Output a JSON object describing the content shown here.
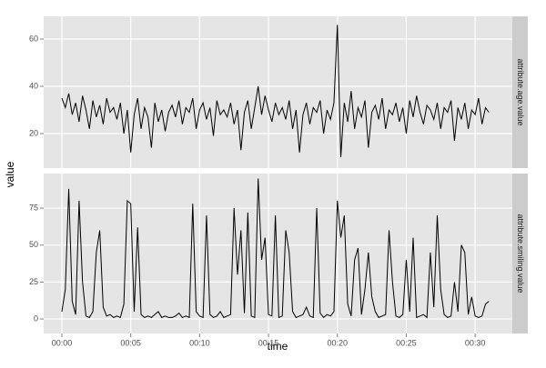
{
  "chart_data": {
    "type": "line",
    "x_label": "time",
    "y_label": "value",
    "grid": true,
    "xlim": [
      -1.32,
      32.7
    ],
    "xticks": [
      {
        "value": 0,
        "label": "00:00"
      },
      {
        "value": 5,
        "label": "00:05"
      },
      {
        "value": 10,
        "label": "00:10"
      },
      {
        "value": 15,
        "label": "00:15"
      },
      {
        "value": 20,
        "label": "00:20"
      },
      {
        "value": 25,
        "label": "00:25"
      },
      {
        "value": 30,
        "label": "00:30"
      }
    ],
    "x": [
      0,
      0.25,
      0.5,
      0.75,
      1,
      1.25,
      1.5,
      1.75,
      2,
      2.25,
      2.5,
      2.75,
      3,
      3.25,
      3.5,
      3.75,
      4,
      4.25,
      4.5,
      4.75,
      5,
      5.25,
      5.5,
      5.75,
      6,
      6.25,
      6.5,
      6.75,
      7,
      7.25,
      7.5,
      7.75,
      8,
      8.25,
      8.5,
      8.75,
      9,
      9.25,
      9.5,
      9.75,
      10,
      10.25,
      10.5,
      10.75,
      11,
      11.25,
      11.5,
      11.75,
      12,
      12.25,
      12.5,
      12.75,
      13,
      13.25,
      13.5,
      13.75,
      14,
      14.25,
      14.5,
      14.75,
      15,
      15.25,
      15.5,
      15.75,
      16,
      16.25,
      16.5,
      16.75,
      17,
      17.25,
      17.5,
      17.75,
      18,
      18.25,
      18.5,
      18.75,
      19,
      19.25,
      19.5,
      19.75,
      20,
      20.25,
      20.5,
      20.75,
      21,
      21.25,
      21.5,
      21.75,
      22,
      22.25,
      22.5,
      22.75,
      23,
      23.25,
      23.5,
      23.75,
      24,
      24.25,
      24.5,
      24.75,
      25,
      25.25,
      25.5,
      25.75,
      26,
      26.25,
      26.5,
      26.75,
      27,
      27.25,
      27.5,
      27.75,
      28,
      28.25,
      28.5,
      28.75,
      29,
      29.25,
      29.5,
      29.75,
      30,
      30.25,
      30.5,
      30.75,
      31
    ],
    "panels": [
      {
        "label": "attribute.age.value",
        "color": "#000000",
        "ylim": [
          5.4,
          69.6
        ],
        "yticks": [
          20,
          40,
          60
        ],
        "values": [
          35,
          31,
          37,
          28,
          33,
          25,
          36,
          30,
          22,
          34,
          27,
          32,
          24,
          35,
          29,
          31,
          26,
          33,
          20,
          30,
          12,
          28,
          35,
          22,
          31,
          27,
          14,
          33,
          25,
          30,
          21,
          29,
          32,
          27,
          34,
          24,
          31,
          29,
          35,
          22,
          30,
          33,
          26,
          31,
          19,
          34,
          28,
          30,
          27,
          33,
          24,
          30,
          13,
          29,
          34,
          22,
          31,
          40,
          28,
          36,
          30,
          25,
          33,
          28,
          31,
          26,
          34,
          22,
          30,
          12,
          28,
          33,
          24,
          31,
          29,
          34,
          20,
          30,
          26,
          33,
          66,
          10,
          33,
          25,
          38,
          22,
          31,
          27,
          34,
          14,
          29,
          32,
          26,
          35,
          22,
          30,
          28,
          33,
          25,
          31,
          20,
          34,
          27,
          36,
          29,
          24,
          32,
          30,
          26,
          33,
          22,
          31,
          29,
          34,
          17,
          31,
          26,
          33,
          22,
          30,
          28,
          35,
          24,
          31,
          29
        ]
      },
      {
        "label": "attribute.smiling.value",
        "color": "#000000",
        "ylim": [
          -9.8,
          98.4
        ],
        "yticks": [
          0,
          25,
          50,
          75
        ],
        "values": [
          5,
          20,
          88,
          12,
          3,
          80,
          25,
          2,
          1,
          5,
          45,
          60,
          8,
          2,
          3,
          1,
          2,
          1,
          10,
          80,
          78,
          5,
          62,
          3,
          1,
          2,
          1,
          3,
          5,
          1,
          2,
          1,
          1,
          2,
          4,
          1,
          2,
          1,
          78,
          5,
          2,
          1,
          70,
          3,
          1,
          2,
          5,
          1,
          2,
          3,
          75,
          30,
          60,
          4,
          72,
          2,
          1,
          95,
          40,
          55,
          3,
          2,
          70,
          1,
          2,
          60,
          45,
          5,
          1,
          2,
          3,
          8,
          2,
          1,
          75,
          4,
          1,
          3,
          2,
          5,
          80,
          55,
          70,
          10,
          2,
          40,
          48,
          3,
          20,
          45,
          15,
          5,
          1,
          2,
          3,
          60,
          25,
          2,
          1,
          3,
          40,
          5,
          55,
          1,
          2,
          3,
          1,
          45,
          8,
          70,
          20,
          3,
          1,
          2,
          25,
          5,
          50,
          45,
          3,
          15,
          2,
          1,
          2,
          10,
          12
        ]
      }
    ]
  }
}
